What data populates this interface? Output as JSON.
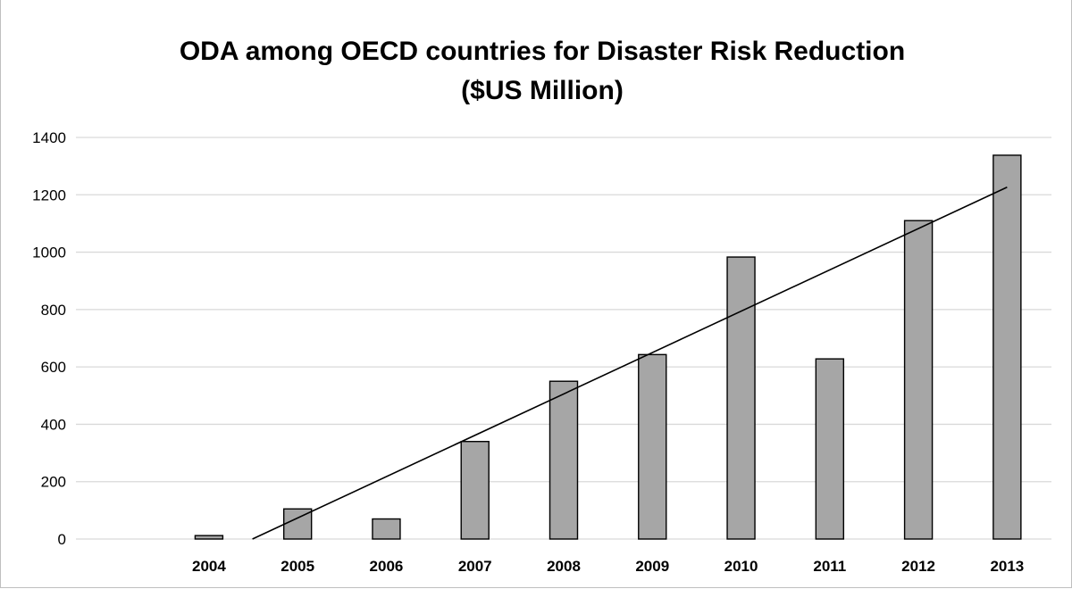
{
  "chart_data": {
    "type": "bar",
    "title": "ODA among OECD countries for Disaster Risk Reduction",
    "subtitle": "($US Million)",
    "xlabel": "",
    "ylabel": "",
    "categories": [
      "",
      "2004",
      "2005",
      "2006",
      "2007",
      "2008",
      "2009",
      "2010",
      "2011",
      "2012",
      "2013"
    ],
    "values": [
      null,
      12,
      105,
      70,
      340,
      550,
      643,
      983,
      628,
      1110,
      1338
    ],
    "ylim": [
      0,
      1400
    ],
    "yticks": [
      "0",
      "200",
      "400",
      "600",
      "800",
      "1000",
      "1200",
      "1400"
    ],
    "grid": true,
    "legend": "none",
    "trendline": {
      "type": "linear",
      "color": "#000000"
    },
    "bar_color": "#a6a6a6",
    "bar_edge_color": "#000000",
    "gridline_color": "#d9d9d9"
  }
}
